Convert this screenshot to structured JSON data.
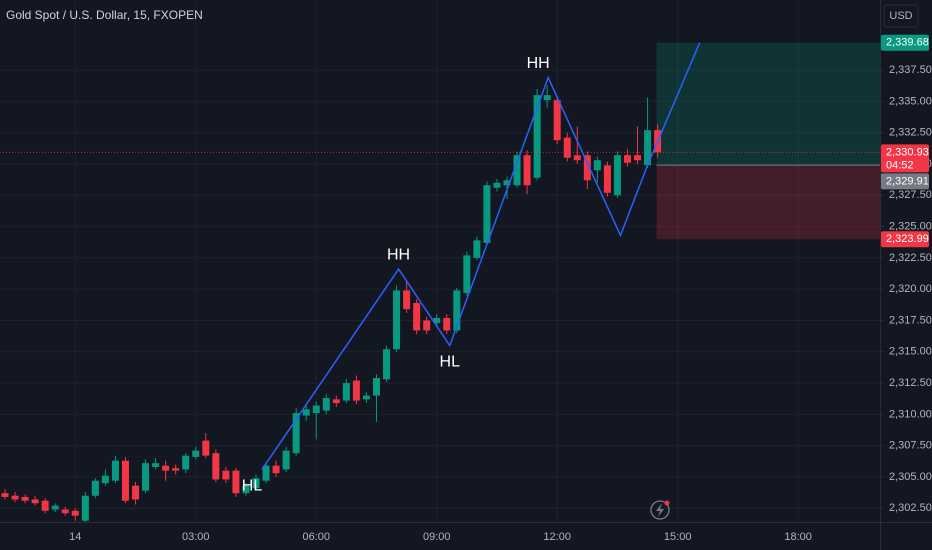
{
  "chart_data": {
    "type": "candlestick",
    "title": "Gold Spot / U.S. Dollar, 15, FXOPEN",
    "currency": "USD",
    "up_color": "#089981",
    "down_color": "#f23645",
    "categories": [
      null,
      null,
      null,
      null,
      null,
      null,
      null,
      "14",
      null,
      null,
      null,
      null,
      null,
      null,
      null,
      null,
      null,
      null,
      null,
      "03:00",
      null,
      null,
      null,
      null,
      null,
      null,
      null,
      null,
      null,
      null,
      null,
      "06:00",
      null,
      null,
      null,
      null,
      null,
      null,
      null,
      null,
      null,
      null,
      null,
      "09:00",
      null,
      null,
      null,
      null,
      null,
      null,
      null,
      null,
      null,
      null,
      null,
      "12:00",
      null,
      null,
      null,
      null,
      null,
      null,
      null,
      null,
      null,
      null,
      null,
      "15:00",
      null,
      null,
      null,
      null,
      null,
      null,
      null,
      null,
      null,
      null,
      null,
      "18:00"
    ],
    "ohlc": {
      "open": [
        2303.7,
        2303.5,
        2303.4,
        2303.2,
        2303.1,
        2302.4,
        2302.4,
        2302.3,
        2301.5,
        2303.5,
        2304.5,
        2304.7,
        2306.3,
        2304.3,
        2303.9,
        2305.8,
        2305.9,
        2305.7,
        2305.6,
        2306.6,
        2307.9,
        2306.9,
        2305.5,
        2305.5,
        2303.7,
        2304.1,
        2304.7,
        2305.9,
        2305.6,
        2306.9,
        2309.9,
        2310.1,
        2310.3,
        2311.2,
        2311.1,
        2312.7,
        2311.2,
        2311.5,
        2312.8,
        2315.2,
        2319.9,
        2318.9,
        2317.5,
        2317.3,
        2317.7,
        2316.7,
        2319.7,
        2322.5,
        2323.7,
        2328.1,
        2328.3,
        2328.3,
        2330.7,
        2328.9,
        2335.1,
        2335.1,
        2332.1,
        2330.7,
        2330.7,
        2329.5,
        2329.9,
        2327.5,
        2330.7,
        2330.7,
        2329.9,
        2332.7,
        null,
        null,
        null,
        null,
        null,
        null,
        null,
        null,
        null,
        null,
        null,
        null,
        null,
        null
      ],
      "high": [
        2304.0,
        2303.8,
        2303.6,
        2303.5,
        2303.3,
        2302.9,
        2302.6,
        2302.5,
        2303.8,
        2304.9,
        2305.6,
        2306.7,
        2306.6,
        2304.6,
        2306.4,
        2306.5,
        2306.3,
        2306.0,
        2306.9,
        2307.4,
        2308.5,
        2307.2,
        2305.8,
        2305.7,
        2304.5,
        2305.2,
        2306.1,
        2306.3,
        2307.4,
        2310.5,
        2310.8,
        2311.0,
        2311.6,
        2311.5,
        2312.8,
        2313.1,
        2311.8,
        2313.2,
        2315.5,
        2320.3,
        2320.6,
        2319.2,
        2317.8,
        2318.0,
        2318.0,
        2320.1,
        2323.0,
        2324.2,
        2328.6,
        2328.8,
        2329.0,
        2331.0,
        2331.1,
        2336.0,
        2336.3,
        2335.4,
        2332.5,
        2333.0,
        2331.0,
        2330.6,
        2330.2,
        2331.0,
        2331.2,
        2333.0,
        2335.3,
        2333.2,
        null,
        null,
        null,
        null,
        null,
        null,
        null,
        null,
        null,
        null,
        null,
        null,
        null,
        null
      ],
      "low": [
        2303.2,
        2303.0,
        2302.9,
        2302.7,
        2302.1,
        2302.2,
        2301.9,
        2301.5,
        2301.4,
        2303.3,
        2304.3,
        2304.5,
        2302.9,
        2302.8,
        2303.7,
        2305.6,
        2304.7,
        2305.2,
        2305.3,
        2306.4,
        2306.5,
        2304.6,
        2304.5,
        2303.4,
        2303.5,
        2303.9,
        2304.5,
        2305.0,
        2305.4,
        2306.7,
        2309.5,
        2308.0,
        2310.0,
        2310.6,
        2310.9,
        2310.8,
        2310.9,
        2309.4,
        2312.6,
        2315.0,
        2318.1,
        2316.4,
        2316.4,
        2317.0,
        2316.4,
        2316.5,
        2319.5,
        2322.3,
        2323.5,
        2327.8,
        2327.2,
        2328.1,
        2327.6,
        2328.7,
        2334.5,
        2331.6,
        2330.2,
        2330.0,
        2328.0,
        2328.5,
        2327.4,
        2327.3,
        2329.8,
        2330.0,
        2329.7,
        2330.5,
        null,
        null,
        null,
        null,
        null,
        null,
        null,
        null,
        null,
        null,
        null,
        null,
        null,
        null
      ],
      "close": [
        2303.4,
        2303.2,
        2303.1,
        2302.9,
        2302.3,
        2302.7,
        2302.1,
        2301.9,
        2303.5,
        2304.7,
        2305.1,
        2306.3,
        2303.1,
        2303.2,
        2306.1,
        2306.1,
        2305.5,
        2305.5,
        2306.7,
        2307.1,
        2306.7,
        2304.8,
        2304.8,
        2303.7,
        2304.3,
        2304.9,
        2305.9,
        2305.3,
        2307.1,
        2310.1,
        2310.4,
        2310.7,
        2311.3,
        2310.9,
        2312.5,
        2311.1,
        2311.5,
        2312.9,
        2315.2,
        2319.9,
        2318.4,
        2316.7,
        2316.7,
        2317.7,
        2316.7,
        2319.9,
        2322.7,
        2323.9,
        2328.3,
        2328.5,
        2328.7,
        2330.7,
        2328.3,
        2335.5,
        2335.5,
        2331.9,
        2330.5,
        2330.3,
        2328.7,
        2330.3,
        2327.7,
        2330.7,
        2330.1,
        2330.3,
        2332.7,
        2330.93,
        null,
        null,
        null,
        null,
        null,
        null,
        null,
        null,
        null,
        null,
        null,
        null,
        null,
        null
      ]
    },
    "last_price_label": "2,330.93",
    "countdown": "04:52",
    "ylim": [
      2301.4,
      2343.1
    ],
    "yticks": [
      {
        "value": 2302.5,
        "label": "2,302.50"
      },
      {
        "value": 2305,
        "label": "2,305.00"
      },
      {
        "value": 2307.5,
        "label": "2,307.50"
      },
      {
        "value": 2310,
        "label": "2,310.00"
      },
      {
        "value": 2312.5,
        "label": "2,312.50"
      },
      {
        "value": 2315,
        "label": "2,315.00"
      },
      {
        "value": 2317.5,
        "label": "2,317.50"
      },
      {
        "value": 2320,
        "label": "2,320.00"
      },
      {
        "value": 2322.5,
        "label": "2,322.50"
      },
      {
        "value": 2325,
        "label": "2,325.00"
      },
      {
        "value": 2327.5,
        "label": "2,327.50"
      },
      {
        "value": 2330,
        "label": "2,330.00"
      },
      {
        "value": 2332.5,
        "label": "2,332.50"
      },
      {
        "value": 2335,
        "label": "2,335.00"
      },
      {
        "value": 2337.5,
        "label": "2,337.50"
      }
    ],
    "grid": true,
    "zigzag": {
      "color": "#2962ff",
      "x": [
        25.6,
        39.2,
        44.3,
        54.1,
        61.3,
        64.0,
        69.2
      ],
      "y": [
        2305.6,
        2321.6,
        2315.5,
        2336.9,
        2324.3,
        2329.9,
        2339.7
      ],
      "pivot_labels": [
        "HL",
        "HH",
        "HL",
        "HH"
      ]
    },
    "position": {
      "target": {
        "value": 2339.68,
        "label": "2,339.68"
      },
      "entry": {
        "value": 2329.91,
        "label": "2,329.91"
      },
      "stop": {
        "value": 2323.99,
        "label": "2,323.99"
      }
    }
  }
}
